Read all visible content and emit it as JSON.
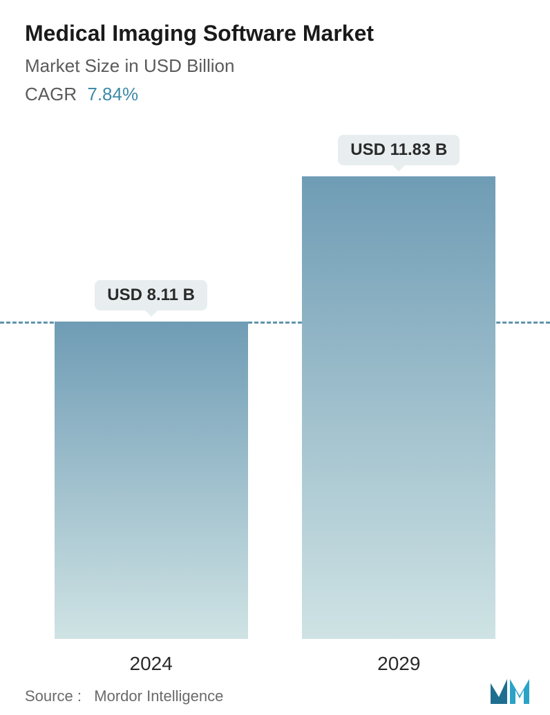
{
  "header": {
    "title": "Medical Imaging Software Market",
    "subtitle": "Market Size in USD Billion",
    "cagr_label": "CAGR",
    "cagr_value": "7.84%"
  },
  "chart": {
    "type": "bar",
    "background_color": "#ffffff",
    "dashed_line_color": "#5f93ab",
    "dashed_line_at_value": 8.11,
    "y_max_value": 11.83,
    "bar_gradient_top": "#6f9cb5",
    "bar_gradient_bottom": "#cfe3e4",
    "badge_bg": "#e8eef0",
    "badge_text_color": "#2a2a2a",
    "x_label_color": "#2a2a2a",
    "x_label_fontsize": 28,
    "badge_fontsize": 24,
    "bars": [
      {
        "category": "2024",
        "value": 8.11,
        "label": "USD 8.11 B"
      },
      {
        "category": "2029",
        "value": 11.83,
        "label": "USD 11.83 B"
      }
    ]
  },
  "footer": {
    "source_prefix": "Source :",
    "source_name": "Mordor Intelligence",
    "logo_color_primary": "#1e6f8f",
    "logo_color_secondary": "#2aa3c7"
  }
}
